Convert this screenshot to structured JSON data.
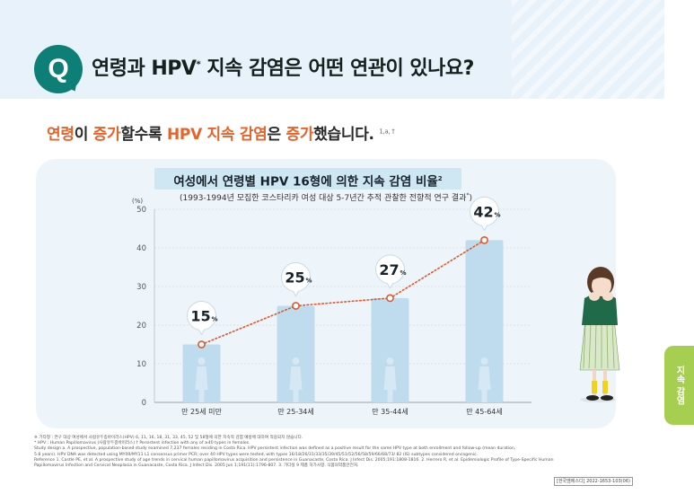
{
  "header": {
    "q_letter": "Q",
    "question": "연령과 HPV",
    "question_sup": "*",
    "question_tail": " 지속 감염은 어떤 연관이 있나요?"
  },
  "headline": {
    "p1": "연령",
    "p2": "이 ",
    "p3": "증가",
    "p4": "할수록 ",
    "p5": "HPV 지속 감염",
    "p6": "은 ",
    "p7": "증가",
    "p8": "했습니다.",
    "refs": "1,a, †"
  },
  "colors": {
    "accent": "#e8622a",
    "teal": "#0e7f76",
    "bar": "#bfdcee",
    "line": "#e0572a",
    "tab": "#a6cf52"
  },
  "chart_data": {
    "type": "bar",
    "title": "여성에서 연령별 HPV 16형에 의한 지속 감염 비율",
    "title_sup": "2",
    "subtitle": "(1993-1994년 모집한 코스타리카 여성 대상 5-7년간 추적 관찰한 전향적 연구 결과",
    "subtitle_sup": "*",
    "subtitle_end": ")",
    "ylabel": "(%)",
    "ylim": [
      0,
      50
    ],
    "yticks": [
      "0",
      "10",
      "20",
      "30",
      "40",
      "50"
    ],
    "grid": true,
    "categories": [
      "만 25세 미만",
      "만 25-34세",
      "만 35-44세",
      "만 45-64세"
    ],
    "values": [
      15,
      25,
      27,
      42
    ],
    "labels": [
      "15",
      "25",
      "27",
      "42"
    ],
    "label_unit": "%",
    "line_values": [
      15,
      25,
      27,
      42
    ]
  },
  "side_tab": "지속 감염",
  "footnotes": [
    "※ 기타형 : 연구 대상 여성에서 사람유두종바이러스(HPV) 6, 11, 16, 18, 31, 33, 45, 52 및 58형에 의한 지속적 감염 예방에 대하여 적용되지 않습니다.",
    "* HPV : Human Papillomavirus (사람유두종바이러스) † Persistent infection with any of ≥40 types in females.",
    "Study design a. A prospective, population-based study examined 7,237 females residing in Costa Rica. HPV persistent infection was defined as a positive result for the same HPV type at both enrollment and follow-up (mean duration,",
    "5.8 years). HPV DNA was detected using MY09/MY11 L1 consensus primer PCR; over 40 HPV types were tested, with types 16/18/26/31/33/35/39/45/51/52/56/58/59/66/68/73/ 82 (IS) subtypes considered oncogenic.",
    "Reference 1. Castle PE, et al. A prospective study of age trends in cervical human papillomavirus acquisition and persistence in Guanacaste, Costa Rica. J Infect Dis. 2005;191:1808-1816. 2. Herrero R, et al. Epidemiologic Profile of Type-Specific Human",
    "Papillomavirus Infection and Cervical Neoplasia in Guanacaste, Costa Rica. J Infect Dis. 2005 Jun 1;191(11):1796-807. 3. 가다실 9 제품 허가사항. 식품의약품안전처."
  ],
  "code": "[한국엠에스디] 2022-1653-103(06)"
}
